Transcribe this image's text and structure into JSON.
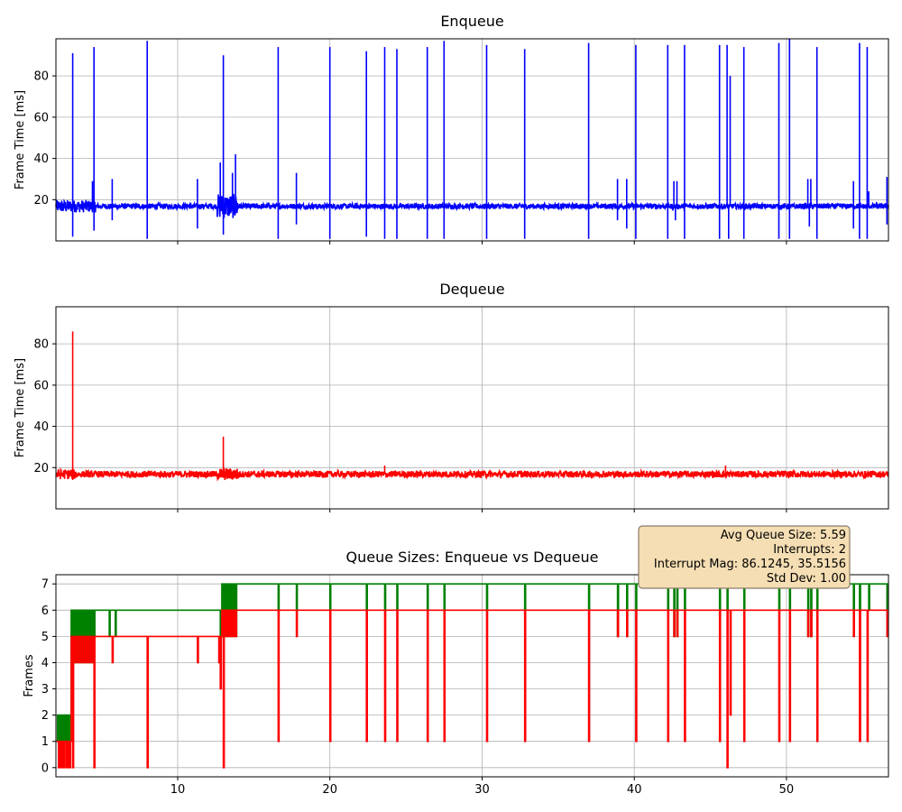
{
  "colors": {
    "enqueue": "#0000ff",
    "dequeue": "#ff0000",
    "queue_enqueue": "#008000",
    "queue_dequeue": "#ff0000",
    "grid": "#b0b0b0",
    "annotation_bg": "#f5deb3",
    "annotation_edge": "#8b7b6b"
  },
  "annotation": {
    "lines": [
      "Avg Queue Size: 5.59",
      "Interrupts: 2",
      "Interrupt Mag: 86.1245, 35.5156",
      "Std Dev: 1.00"
    ]
  },
  "chart_data": [
    {
      "type": "line",
      "title": "Enqueue",
      "xlabel": "",
      "ylabel": "Frame Time [ms]",
      "xlim": [
        2.0,
        56.7
      ],
      "ylim": [
        0,
        98
      ],
      "xticks": [
        10,
        20,
        30,
        40,
        50
      ],
      "xtick_labels_visible": false,
      "yticks": [
        20,
        40,
        60,
        80
      ],
      "grid": true,
      "baseline": 16.8,
      "noise": 1.3,
      "noisy_regions": [
        [
          2.0,
          4.6,
          3.0
        ],
        [
          12.6,
          14.0,
          6.0
        ]
      ],
      "spikes": [
        [
          3.1,
          91
        ],
        [
          3.1,
          2
        ],
        [
          4.5,
          94
        ],
        [
          4.4,
          29
        ],
        [
          4.5,
          5
        ],
        [
          5.7,
          30
        ],
        [
          5.7,
          10
        ],
        [
          8.0,
          97
        ],
        [
          8.0,
          1
        ],
        [
          11.3,
          30
        ],
        [
          11.3,
          6
        ],
        [
          12.8,
          38
        ],
        [
          13.0,
          90
        ],
        [
          13.0,
          3
        ],
        [
          13.6,
          33
        ],
        [
          13.8,
          42
        ],
        [
          16.6,
          94
        ],
        [
          16.6,
          1
        ],
        [
          17.8,
          33
        ],
        [
          17.8,
          8
        ],
        [
          20.0,
          94
        ],
        [
          20.0,
          1
        ],
        [
          22.4,
          92
        ],
        [
          22.4,
          2
        ],
        [
          23.6,
          94
        ],
        [
          23.6,
          1
        ],
        [
          24.4,
          93
        ],
        [
          24.4,
          1
        ],
        [
          26.4,
          94
        ],
        [
          26.4,
          1
        ],
        [
          27.5,
          97
        ],
        [
          27.5,
          1
        ],
        [
          30.3,
          95
        ],
        [
          30.3,
          1
        ],
        [
          32.8,
          93
        ],
        [
          32.8,
          1
        ],
        [
          37.0,
          96
        ],
        [
          37.0,
          1
        ],
        [
          38.9,
          30
        ],
        [
          38.9,
          10
        ],
        [
          39.5,
          30
        ],
        [
          39.5,
          6
        ],
        [
          40.1,
          95
        ],
        [
          40.1,
          1
        ],
        [
          42.2,
          95
        ],
        [
          42.2,
          1
        ],
        [
          42.6,
          29
        ],
        [
          42.8,
          29
        ],
        [
          42.7,
          10
        ],
        [
          43.3,
          95
        ],
        [
          43.3,
          1
        ],
        [
          45.6,
          95
        ],
        [
          45.6,
          1
        ],
        [
          46.1,
          95
        ],
        [
          46.3,
          80
        ],
        [
          46.2,
          1
        ],
        [
          47.2,
          94
        ],
        [
          47.2,
          1
        ],
        [
          49.5,
          96
        ],
        [
          49.5,
          1
        ],
        [
          50.2,
          98
        ],
        [
          50.2,
          1
        ],
        [
          51.4,
          30
        ],
        [
          51.6,
          30
        ],
        [
          51.5,
          7
        ],
        [
          52.0,
          94
        ],
        [
          52.0,
          1
        ],
        [
          54.4,
          29
        ],
        [
          54.4,
          6
        ],
        [
          54.8,
          96
        ],
        [
          54.8,
          1
        ],
        [
          55.3,
          94
        ],
        [
          55.3,
          1
        ],
        [
          55.4,
          24
        ],
        [
          56.6,
          31
        ],
        [
          56.6,
          8
        ]
      ]
    },
    {
      "type": "line",
      "title": "Dequeue",
      "xlabel": "",
      "ylabel": "Frame Time [ms]",
      "xlim": [
        2.0,
        56.7
      ],
      "ylim": [
        0,
        98
      ],
      "xticks": [
        10,
        20,
        30,
        40,
        50
      ],
      "xtick_labels_visible": false,
      "yticks": [
        20,
        40,
        60,
        80
      ],
      "grid": true,
      "baseline": 16.8,
      "noise": 1.6,
      "noisy_regions": [
        [
          2.0,
          3.4,
          2.5
        ],
        [
          12.6,
          14.0,
          3.0
        ]
      ],
      "spikes": [
        [
          3.1,
          86
        ],
        [
          3.1,
          14
        ],
        [
          13.0,
          35
        ],
        [
          13.0,
          15
        ],
        [
          23.6,
          21
        ],
        [
          46.0,
          21
        ]
      ]
    },
    {
      "type": "line",
      "title": "Queue Sizes: Enqueue vs Dequeue",
      "xlabel": "",
      "ylabel": "Frames",
      "xlim": [
        2.0,
        56.7
      ],
      "ylim": [
        -0.35,
        7.35
      ],
      "xticks": [
        10,
        20,
        30,
        40,
        50
      ],
      "xtick_labels_visible": true,
      "yticks": [
        0,
        1,
        2,
        3,
        4,
        5,
        6,
        7
      ],
      "grid": true,
      "series": [
        {
          "key": "queue_enqueue",
          "levels": [
            [
              2.0,
              1
            ],
            [
              3.0,
              6
            ],
            [
              12.9,
              7
            ],
            [
              56.7,
              7
            ]
          ],
          "oscillations": [
            [
              2.1,
              3.0,
              1,
              2,
              28
            ],
            [
              3.0,
              4.5,
              4,
              6,
              26
            ],
            [
              12.9,
              13.9,
              5,
              7,
              20
            ]
          ],
          "dips": [
            [
              3.2,
              4
            ],
            [
              4.2,
              4
            ],
            [
              4.5,
              4
            ],
            [
              5.5,
              5
            ],
            [
              5.9,
              5
            ],
            [
              12.8,
              5
            ],
            [
              16.6,
              6
            ],
            [
              17.8,
              6
            ],
            [
              20.0,
              6
            ],
            [
              22.4,
              6
            ],
            [
              23.6,
              6
            ],
            [
              24.4,
              6
            ],
            [
              26.4,
              6
            ],
            [
              27.5,
              6
            ],
            [
              30.3,
              6
            ],
            [
              32.8,
              6
            ],
            [
              37.0,
              6
            ],
            [
              38.9,
              5
            ],
            [
              39.5,
              5
            ],
            [
              40.1,
              6
            ],
            [
              42.2,
              6
            ],
            [
              42.6,
              5
            ],
            [
              42.8,
              5
            ],
            [
              43.3,
              6
            ],
            [
              45.6,
              6
            ],
            [
              46.1,
              6
            ],
            [
              47.2,
              6
            ],
            [
              49.5,
              6
            ],
            [
              50.2,
              6
            ],
            [
              51.4,
              5
            ],
            [
              51.6,
              5
            ],
            [
              52.0,
              6
            ],
            [
              54.4,
              6
            ],
            [
              54.8,
              6
            ],
            [
              55.4,
              6
            ],
            [
              56.6,
              6
            ]
          ]
        },
        {
          "key": "queue_dequeue",
          "levels": [
            [
              2.0,
              1
            ],
            [
              3.0,
              5
            ],
            [
              12.9,
              6
            ],
            [
              56.7,
              6
            ]
          ],
          "oscillations": [
            [
              2.1,
              3.0,
              0,
              1,
              14
            ],
            [
              3.0,
              4.5,
              4,
              5,
              22
            ],
            [
              12.9,
              13.9,
              5,
              6,
              18
            ]
          ],
          "dips": [
            [
              3.1,
              0
            ],
            [
              4.5,
              0
            ],
            [
              5.7,
              4
            ],
            [
              8.0,
              0
            ],
            [
              11.3,
              4
            ],
            [
              12.7,
              4
            ],
            [
              12.8,
              3
            ],
            [
              13.0,
              0
            ],
            [
              16.6,
              1
            ],
            [
              17.8,
              5
            ],
            [
              20.0,
              1
            ],
            [
              22.4,
              1
            ],
            [
              23.6,
              1
            ],
            [
              24.4,
              1
            ],
            [
              26.4,
              1
            ],
            [
              27.5,
              1
            ],
            [
              30.3,
              1
            ],
            [
              32.8,
              1
            ],
            [
              37.0,
              1
            ],
            [
              38.9,
              5
            ],
            [
              39.5,
              5
            ],
            [
              40.1,
              1
            ],
            [
              42.2,
              1
            ],
            [
              42.6,
              5
            ],
            [
              42.8,
              5
            ],
            [
              43.3,
              1
            ],
            [
              45.6,
              1
            ],
            [
              46.1,
              0
            ],
            [
              46.3,
              2
            ],
            [
              47.2,
              1
            ],
            [
              49.5,
              1
            ],
            [
              50.2,
              1
            ],
            [
              51.4,
              5
            ],
            [
              51.6,
              5
            ],
            [
              52.0,
              1
            ],
            [
              54.4,
              5
            ],
            [
              54.8,
              1
            ],
            [
              55.3,
              1
            ],
            [
              56.6,
              5
            ]
          ]
        }
      ]
    }
  ]
}
